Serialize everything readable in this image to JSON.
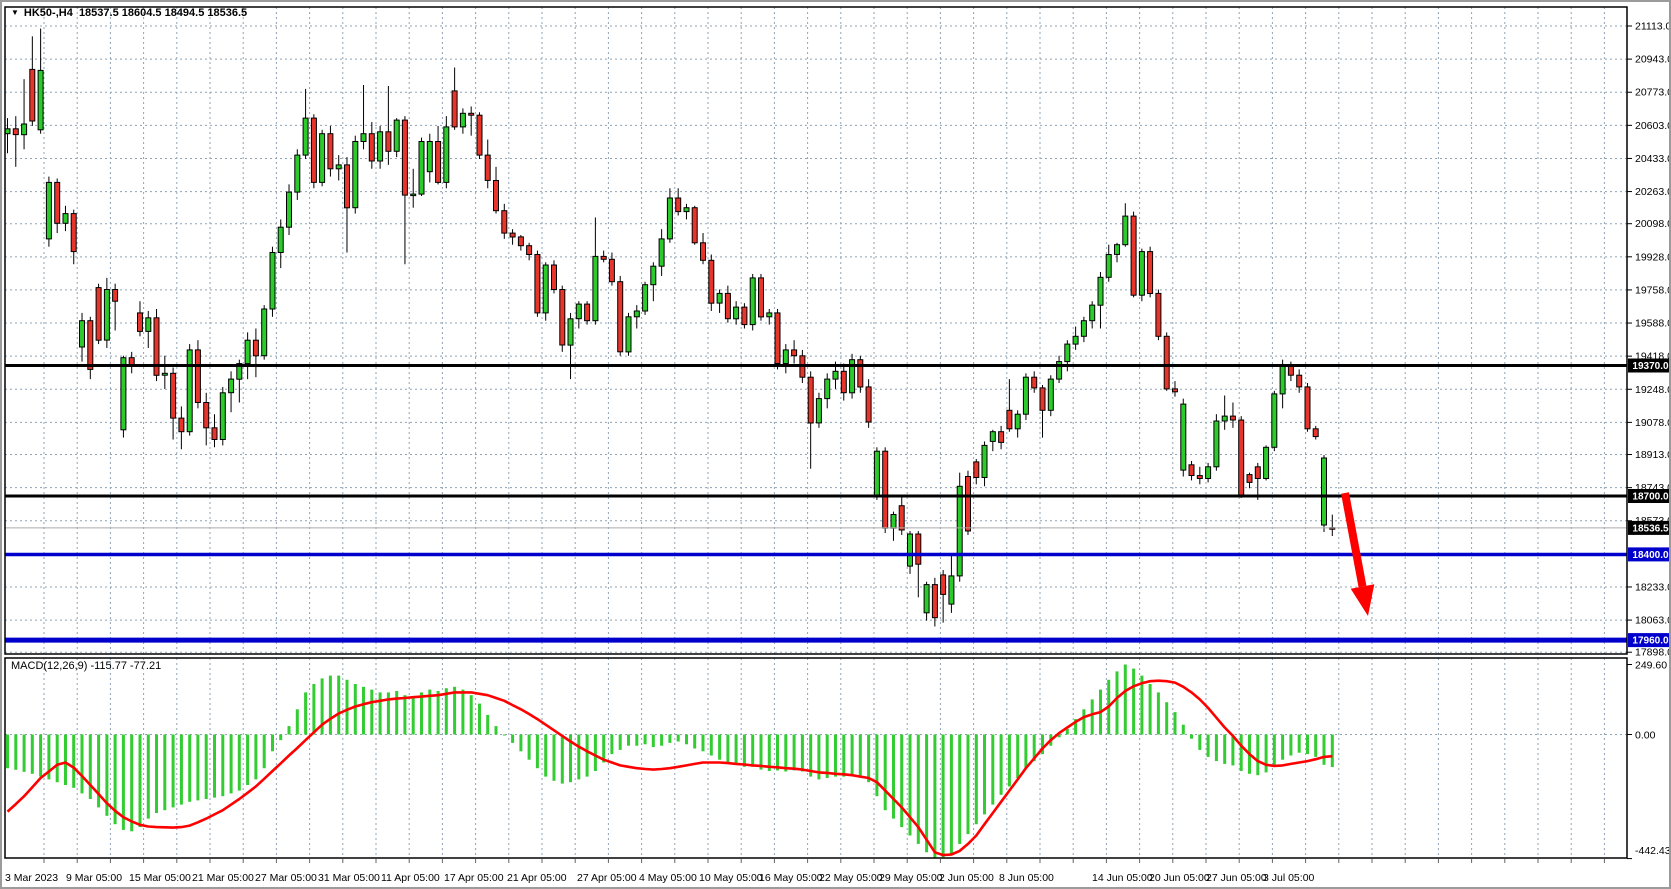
{
  "window": {
    "collapse_icon": "▼",
    "title_text": "HK50-,H4  18537.5 18604.5 18494.5 18536.5"
  },
  "chart_data": {
    "type": "candlestick",
    "symbol": "HK50-",
    "timeframe": "H4",
    "current_bar": {
      "open": 18537.5,
      "high": 18604.5,
      "low": 18494.5,
      "close": 18536.5
    },
    "price_axis_labels": [
      21113.0,
      20943.0,
      20773.0,
      20603.0,
      20433.0,
      20263.0,
      20098.0,
      19928.0,
      19758.0,
      19588.0,
      19418.0,
      19248.0,
      19078.0,
      18913.0,
      18743.0,
      18573.0,
      18233.0,
      18063.0,
      17898.0
    ],
    "time_axis_labels": [
      [
        "3 Mar 2023",
        3
      ],
      [
        "9 Mar 05:00",
        64
      ],
      [
        "15 Mar 05:00",
        127
      ],
      [
        "21 Mar 05:00",
        190
      ],
      [
        "27 Mar 05:00",
        253
      ],
      [
        "31 Mar 05:00",
        316
      ],
      [
        "11 Apr 05:00",
        379
      ],
      [
        "17 Apr 05:00",
        442
      ],
      [
        "21 Apr 05:00",
        505
      ],
      [
        "27 Apr 05:00",
        575
      ],
      [
        "4 May 05:00",
        637
      ],
      [
        "10 May 05:00",
        697
      ],
      [
        "16 May 05:00",
        757
      ],
      [
        "22 May 05:00",
        817
      ],
      [
        "29 May 05:00",
        877
      ],
      [
        "2 Jun 05:00",
        937
      ],
      [
        "8 Jun 05:00",
        997
      ],
      [
        "14 Jun 05:00",
        1090
      ],
      [
        "20 Jun 05:00",
        1147
      ],
      [
        "27 Jun 05:00",
        1204
      ],
      [
        "3 Jul 05:00",
        1261
      ]
    ],
    "hlines": [
      {
        "price": 19370.0,
        "label": "19370.0",
        "color": "#000000",
        "width": 3,
        "tag": "#000000"
      },
      {
        "price": 18700.0,
        "label": "18700.0",
        "color": "#000000",
        "width": 3,
        "tag": "#000000"
      },
      {
        "price": 18536.5,
        "label": "18536.5",
        "color": "#aaaaaa",
        "width": 1,
        "tag": "#000000"
      },
      {
        "price": 18400.0,
        "label": "18400.0",
        "color": "#0000cc",
        "width": 3.5,
        "tag": "#0000cc"
      },
      {
        "price": 17960.0,
        "label": "17960.0",
        "color": "#0000cc",
        "width": 5,
        "tag": "#0000cc"
      }
    ],
    "candles": [
      [
        20560,
        20640,
        20460,
        20585
      ],
      [
        20585,
        20650,
        20390,
        20555
      ],
      [
        20555,
        20840,
        20480,
        20610
      ],
      [
        20890,
        21060,
        20600,
        20625
      ],
      [
        20580,
        21100,
        20560,
        20885
      ],
      [
        20020,
        20340,
        19980,
        20310
      ],
      [
        20310,
        20330,
        20050,
        20100
      ],
      [
        20100,
        20190,
        20060,
        20150
      ],
      [
        20150,
        20170,
        19890,
        19955
      ],
      [
        19465,
        19640,
        19390,
        19600
      ],
      [
        19600,
        19620,
        19300,
        19350
      ],
      [
        19770,
        19790,
        19480,
        19500
      ],
      [
        19500,
        19820,
        19460,
        19760
      ],
      [
        19760,
        19790,
        19550,
        19700
      ],
      [
        19040,
        19420,
        19000,
        19410
      ],
      [
        19410,
        19440,
        19330,
        19370
      ],
      [
        19640,
        19700,
        19520,
        19545
      ],
      [
        19545,
        19650,
        19460,
        19615
      ],
      [
        19615,
        19660,
        19290,
        19320
      ],
      [
        19320,
        19420,
        19250,
        19330
      ],
      [
        19330,
        19360,
        18990,
        19100
      ],
      [
        19100,
        19160,
        18940,
        19030
      ],
      [
        19030,
        19480,
        19010,
        19450
      ],
      [
        19450,
        19500,
        19150,
        19180
      ],
      [
        19180,
        19230,
        18960,
        19050
      ],
      [
        19050,
        19120,
        18950,
        18990
      ],
      [
        18990,
        19260,
        18960,
        19230
      ],
      [
        19230,
        19340,
        19130,
        19300
      ],
      [
        19300,
        19400,
        19180,
        19380
      ],
      [
        19380,
        19540,
        19300,
        19500
      ],
      [
        19500,
        19560,
        19310,
        19420
      ],
      [
        19420,
        19680,
        19400,
        19660
      ],
      [
        19660,
        19980,
        19620,
        19950
      ],
      [
        19950,
        20120,
        19870,
        20080
      ],
      [
        20080,
        20300,
        20040,
        20260
      ],
      [
        20260,
        20480,
        20220,
        20450
      ],
      [
        20450,
        20790,
        20430,
        20640
      ],
      [
        20640,
        20660,
        20280,
        20310
      ],
      [
        20310,
        20580,
        20290,
        20560
      ],
      [
        20560,
        20600,
        20340,
        20380
      ],
      [
        20380,
        20450,
        20320,
        20400
      ],
      [
        20400,
        20440,
        19950,
        20180
      ],
      [
        20180,
        20550,
        20150,
        20520
      ],
      [
        20520,
        20810,
        20480,
        20560
      ],
      [
        20560,
        20620,
        20380,
        20420
      ],
      [
        20420,
        20600,
        20380,
        20570
      ],
      [
        20570,
        20805,
        20400,
        20470
      ],
      [
        20470,
        20640,
        20440,
        20630
      ],
      [
        20630,
        20650,
        19890,
        20245
      ],
      [
        20245,
        20380,
        20180,
        20250
      ],
      [
        20250,
        20540,
        20240,
        20520
      ],
      [
        20365,
        20560,
        20310,
        20520
      ],
      [
        20520,
        20600,
        20300,
        20310
      ],
      [
        20310,
        20650,
        20280,
        20595
      ],
      [
        20780,
        20900,
        20580,
        20595
      ],
      [
        20595,
        20690,
        20560,
        20665
      ],
      [
        20665,
        20700,
        20550,
        20655
      ],
      [
        20655,
        20670,
        20430,
        20450
      ],
      [
        20450,
        20530,
        20280,
        20320
      ],
      [
        20320,
        20390,
        20150,
        20165
      ],
      [
        20165,
        20200,
        20020,
        20050
      ],
      [
        20050,
        20070,
        19990,
        20030
      ],
      [
        20030,
        20040,
        19960,
        19985
      ],
      [
        19985,
        20000,
        19910,
        19940
      ],
      [
        19940,
        19960,
        19620,
        19640
      ],
      [
        19640,
        19900,
        19600,
        19886
      ],
      [
        19886,
        19910,
        19740,
        19760
      ],
      [
        19760,
        19780,
        19440,
        19475
      ],
      [
        19475,
        19640,
        19300,
        19610
      ],
      [
        19610,
        19700,
        19560,
        19685
      ],
      [
        19685,
        19700,
        19580,
        19600
      ],
      [
        19600,
        20130,
        19580,
        19930
      ],
      [
        19930,
        19960,
        19900,
        19915
      ],
      [
        19915,
        19950,
        19780,
        19800
      ],
      [
        19800,
        19830,
        19420,
        19440
      ],
      [
        19440,
        19640,
        19420,
        19620
      ],
      [
        19620,
        19680,
        19560,
        19650
      ],
      [
        19650,
        19800,
        19630,
        19785
      ],
      [
        19785,
        19900,
        19700,
        19880
      ],
      [
        19880,
        20070,
        19830,
        20020
      ],
      [
        20020,
        20280,
        20000,
        20230
      ],
      [
        20230,
        20280,
        20140,
        20160
      ],
      [
        20160,
        20200,
        20120,
        20180
      ],
      [
        20180,
        20190,
        19990,
        20000
      ],
      [
        20000,
        20050,
        19890,
        19910
      ],
      [
        19910,
        19940,
        19650,
        19690
      ],
      [
        19690,
        19760,
        19640,
        19740
      ],
      [
        19740,
        19780,
        19590,
        19610
      ],
      [
        19610,
        19700,
        19580,
        19670
      ],
      [
        19670,
        19690,
        19560,
        19580
      ],
      [
        19580,
        19840,
        19550,
        19820
      ],
      [
        19820,
        19840,
        19600,
        19620
      ],
      [
        19620,
        19660,
        19580,
        19640
      ],
      [
        19640,
        19660,
        19350,
        19380
      ],
      [
        19380,
        19480,
        19330,
        19450
      ],
      [
        19450,
        19500,
        19380,
        19420
      ],
      [
        19420,
        19450,
        19280,
        19310
      ],
      [
        19310,
        19340,
        18840,
        19075
      ],
      [
        19075,
        19230,
        19050,
        19200
      ],
      [
        19200,
        19330,
        19150,
        19300
      ],
      [
        19300,
        19390,
        19250,
        19340
      ],
      [
        19340,
        19380,
        19190,
        19230
      ],
      [
        19230,
        19430,
        19200,
        19400
      ],
      [
        19400,
        19420,
        19230,
        19260
      ],
      [
        19260,
        19300,
        19050,
        19080
      ],
      [
        18700,
        18950,
        18680,
        18930
      ],
      [
        18930,
        18950,
        18510,
        18535
      ],
      [
        18535,
        18620,
        18470,
        18605
      ],
      [
        18650,
        18695,
        18500,
        18525
      ],
      [
        18340,
        18520,
        18300,
        18505
      ],
      [
        18505,
        18520,
        18180,
        18350
      ],
      [
        18100,
        18260,
        18060,
        18245
      ],
      [
        18245,
        18280,
        18030,
        18075
      ],
      [
        18295,
        18320,
        18050,
        18195
      ],
      [
        18145,
        18400,
        18100,
        18290
      ],
      [
        18290,
        18820,
        18260,
        18750
      ],
      [
        18800,
        18830,
        18500,
        18520
      ],
      [
        18875,
        18890,
        18760,
        18795
      ],
      [
        18795,
        18980,
        18750,
        18960
      ],
      [
        18980,
        19040,
        18930,
        19030
      ],
      [
        19030,
        19060,
        18940,
        18975
      ],
      [
        19140,
        19300,
        19030,
        19045
      ],
      [
        19045,
        19140,
        19000,
        19120
      ],
      [
        19120,
        19330,
        19090,
        19310
      ],
      [
        19310,
        19340,
        19230,
        19255
      ],
      [
        19255,
        19270,
        19000,
        19140
      ],
      [
        19140,
        19320,
        19110,
        19300
      ],
      [
        19300,
        19420,
        19280,
        19390
      ],
      [
        19390,
        19500,
        19340,
        19480
      ],
      [
        19480,
        19570,
        19450,
        19520
      ],
      [
        19520,
        19620,
        19490,
        19600
      ],
      [
        19600,
        19700,
        19560,
        19680
      ],
      [
        19680,
        19850,
        19560,
        19823
      ],
      [
        19823,
        19990,
        19800,
        19940
      ],
      [
        19940,
        20000,
        19900,
        19990
      ],
      [
        19990,
        20203,
        19980,
        20137
      ],
      [
        20137,
        20160,
        19720,
        19731
      ],
      [
        19731,
        19970,
        19700,
        19955
      ],
      [
        19955,
        19980,
        19720,
        19740
      ],
      [
        19740,
        19760,
        19500,
        19520
      ],
      [
        19520,
        19540,
        19240,
        19250
      ],
      [
        19250,
        19290,
        19210,
        19235
      ],
      [
        18833,
        19200,
        18800,
        19172
      ],
      [
        18860,
        18880,
        18780,
        18805
      ],
      [
        18805,
        18850,
        18760,
        18790
      ],
      [
        18790,
        18870,
        18770,
        18850
      ],
      [
        18850,
        19120,
        18830,
        19085
      ],
      [
        19085,
        19216,
        19040,
        19110
      ],
      [
        19110,
        19180,
        19050,
        19090
      ],
      [
        19090,
        19110,
        18690,
        18705
      ],
      [
        18810,
        18820,
        18740,
        18770
      ],
      [
        18850,
        18870,
        18680,
        18790
      ],
      [
        18790,
        18960,
        18780,
        18950
      ],
      [
        18950,
        19240,
        18930,
        19224
      ],
      [
        19224,
        19400,
        19150,
        19372
      ],
      [
        19372,
        19390,
        19290,
        19320
      ],
      [
        19320,
        19350,
        19230,
        19260
      ],
      [
        19260,
        19280,
        19030,
        19045
      ],
      [
        19045,
        19060,
        18990,
        19005
      ],
      [
        18551,
        18910,
        18515,
        18895
      ],
      [
        18537.5,
        18604.5,
        18494.5,
        18536.5
      ]
    ],
    "macd": {
      "label": "MACD(12,26,9) -115.77 -77.21",
      "params": "12,26,9",
      "macd_value": -115.77,
      "signal_value": -77.21,
      "axis_labels": [
        249.6,
        0.0,
        -442.43
      ],
      "histogram": [
        -120,
        -126,
        -133,
        -140,
        -150,
        -160,
        -170,
        -180,
        -190,
        -210,
        -230,
        -260,
        -290,
        -320,
        -340,
        -345,
        -330,
        -300,
        -280,
        -270,
        -260,
        -250,
        -240,
        -235,
        -230,
        -225,
        -220,
        -210,
        -200,
        -180,
        -160,
        -120,
        -60,
        -20,
        30,
        90,
        150,
        180,
        200,
        210,
        210,
        195,
        180,
        170,
        160,
        150,
        150,
        155,
        140,
        130,
        150,
        160,
        155,
        165,
        170,
        160,
        140,
        110,
        70,
        30,
        0,
        -30,
        -60,
        -90,
        -120,
        -150,
        -165,
        -175,
        -170,
        -160,
        -150,
        -130,
        -100,
        -70,
        -55,
        -40,
        -40,
        -35,
        -45,
        -40,
        -30,
        -25,
        -35,
        -50,
        -60,
        -75,
        -90,
        -100,
        -105,
        -115,
        -115,
        -125,
        -130,
        -128,
        -132,
        -128,
        -132,
        -150,
        -160,
        -155,
        -150,
        -150,
        -145,
        -150,
        -170,
        -220,
        -270,
        -300,
        -330,
        -360,
        -390,
        -420,
        -442.43,
        -438,
        -425,
        -390,
        -355,
        -320,
        -285,
        -250,
        -215,
        -185,
        -155,
        -120,
        -95,
        -70,
        -40,
        -10,
        20,
        55,
        90,
        125,
        160,
        195,
        225,
        249.6,
        235,
        210,
        180,
        150,
        115,
        80,
        35,
        -15,
        -55,
        -80,
        -95,
        -105,
        -110,
        -130,
        -140,
        -145,
        -135,
        -115,
        -90,
        -75,
        -65,
        -70,
        -80,
        -108,
        -115.77
      ],
      "signal": [
        -275,
        -248,
        -220,
        -188,
        -155,
        -132,
        -108,
        -100,
        -118,
        -148,
        -180,
        -212,
        -245,
        -272,
        -295,
        -310,
        -322,
        -328,
        -330,
        -331,
        -332,
        -330,
        -325,
        -313,
        -300,
        -285,
        -270,
        -250,
        -230,
        -208,
        -185,
        -158,
        -130,
        -103,
        -75,
        -48,
        -20,
        8,
        35,
        56,
        75,
        88,
        100,
        108,
        115,
        120,
        125,
        128,
        130,
        133,
        135,
        138,
        140,
        145,
        150,
        150,
        150,
        145,
        140,
        130,
        120,
        105,
        90,
        73,
        55,
        35,
        15,
        -5,
        -25,
        -43,
        -60,
        -75,
        -90,
        -100,
        -110,
        -115,
        -120,
        -123,
        -125,
        -123,
        -120,
        -115,
        -110,
        -105,
        -100,
        -100,
        -100,
        -102,
        -105,
        -107,
        -110,
        -112,
        -115,
        -117,
        -120,
        -122,
        -125,
        -130,
        -135,
        -137,
        -140,
        -142,
        -145,
        -150,
        -155,
        -170,
        -200,
        -230,
        -260,
        -295,
        -330,
        -375,
        -420,
        -430,
        -428,
        -415,
        -390,
        -360,
        -320,
        -280,
        -240,
        -200,
        -160,
        -120,
        -85,
        -50,
        -20,
        5,
        25,
        45,
        62,
        72,
        80,
        100,
        130,
        155,
        172,
        183,
        190,
        192,
        190,
        185,
        170,
        150,
        125,
        95,
        60,
        25,
        -5,
        -40,
        -70,
        -95,
        -108,
        -112,
        -110,
        -105,
        -100,
        -95,
        -88,
        -80,
        -77.21
      ]
    },
    "annotation_arrow": {
      "from": [
        1343,
        491
      ],
      "tip": [
        1366,
        614
      ],
      "color": "#fe0000"
    }
  },
  "colors": {
    "bull": "#2bcb2b",
    "bear": "#e8352b",
    "wick": "#000000",
    "grid": "#8fa3b4",
    "histogram": "#33cc33",
    "signal_line": "#fe0000",
    "background": "#ffffff",
    "axis_text": "#000000",
    "tag_text": "#ffffff"
  }
}
